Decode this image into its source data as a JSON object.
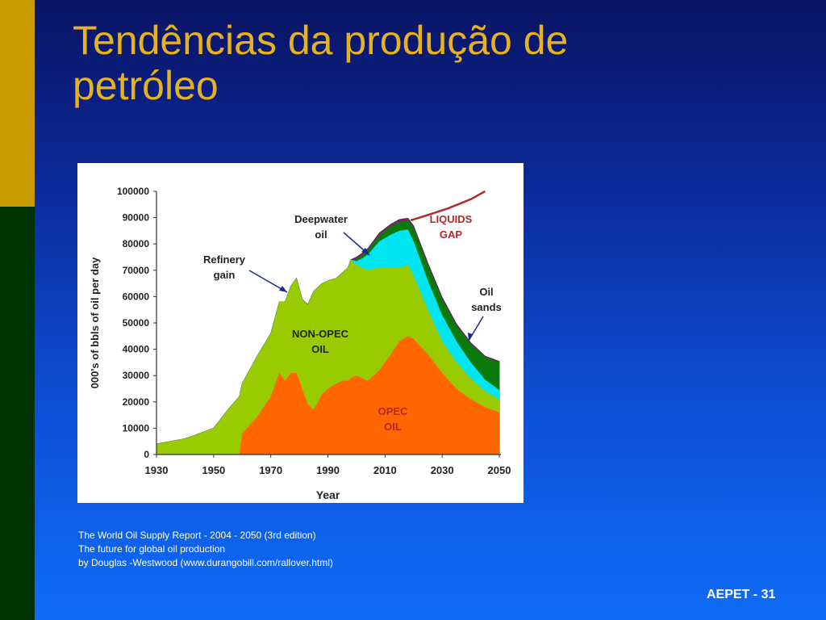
{
  "slide": {
    "title": "Tendências da produção de\npetróleo",
    "caption_lines": [
      "The World Oil Supply Report - 2004 - 2050 (3rd edition)",
      "The future for global oil production",
      "by Douglas -Westwood  (www.durangobill.com/rallover.html)"
    ],
    "footer": "AEPET - 31",
    "colors": {
      "title": "#e6b21e",
      "gold_bar": "#c99a00",
      "green_bar": "#003300"
    }
  },
  "chart_data": {
    "type": "area",
    "xlabel": "Year",
    "ylabel": "000's of bbls of oil per day",
    "xlim": [
      1930,
      2050
    ],
    "ylim": [
      0,
      100000
    ],
    "x_ticks": [
      "1930",
      "1950",
      "1970",
      "1990",
      "2010",
      "2030",
      "2050"
    ],
    "y_ticks": [
      "0",
      "10000",
      "20000",
      "30000",
      "40000",
      "50000",
      "60000",
      "70000",
      "80000",
      "90000",
      "100000"
    ],
    "years": [
      1930,
      1940,
      1950,
      1955,
      1959,
      1960,
      1965,
      1970,
      1973,
      1975,
      1977,
      1979,
      1981,
      1983,
      1985,
      1988,
      1990,
      1993,
      1995,
      1997,
      1998,
      2000,
      2002,
      2004,
      2008,
      2012,
      2015,
      2018,
      2020,
      2025,
      2030,
      2035,
      2040,
      2045,
      2050
    ],
    "series": [
      {
        "label": "OPEC OIL",
        "color": "#ff6600",
        "values": [
          0,
          0,
          0,
          0,
          0,
          8000,
          14000,
          22000,
          31000,
          28000,
          31000,
          31000,
          25000,
          19000,
          17000,
          23000,
          25000,
          27000,
          28000,
          28000,
          29000,
          30000,
          29000,
          28000,
          32000,
          38000,
          43000,
          45000,
          44000,
          38000,
          31000,
          25000,
          21000,
          18000,
          16000
        ]
      },
      {
        "label": "NON-OPEC OIL",
        "color": "#99cc00",
        "values": [
          4000,
          6000,
          10000,
          17000,
          22000,
          27000,
          37000,
          46000,
          58000,
          58000,
          64000,
          67000,
          59000,
          57000,
          62000,
          65000,
          66000,
          67000,
          69000,
          71000,
          74000,
          72000,
          71000,
          70000,
          71000,
          71000,
          71000,
          72000,
          68000,
          55000,
          43000,
          35000,
          29000,
          24000,
          21000
        ]
      },
      {
        "label": "Deepwater oil",
        "color": "#00e5f0",
        "values": [
          4000,
          6000,
          10000,
          17000,
          22000,
          27000,
          37000,
          46000,
          58000,
          58000,
          64000,
          67000,
          59000,
          57000,
          62000,
          65000,
          66000,
          67000,
          69000,
          71000,
          74000,
          73500,
          74500,
          76000,
          81000,
          83500,
          85000,
          85500,
          81000,
          66000,
          53000,
          43000,
          35000,
          28500,
          24500
        ]
      },
      {
        "label": "Oil sands",
        "color": "#0b7a0b",
        "values": [
          4000,
          6000,
          10000,
          17000,
          22000,
          27000,
          37000,
          46000,
          58000,
          58000,
          64000,
          67000,
          59000,
          57000,
          62000,
          65000,
          66000,
          67000,
          69000,
          71000,
          74000,
          74300,
          75800,
          77600,
          83400,
          86700,
          88400,
          89000,
          86000,
          72000,
          59000,
          49000,
          42000,
          37000,
          35000
        ]
      },
      {
        "label": "Refinery gain",
        "color": "#8a1a7a",
        "values": [
          4000,
          6000,
          10000,
          17000,
          22000,
          27000,
          37000,
          46000,
          58000,
          58000,
          64000,
          67000,
          59000,
          57000,
          62000,
          65000,
          66000,
          67000,
          69000,
          71000,
          74000,
          75000,
          76500,
          78300,
          84200,
          87500,
          89300,
          89800,
          86800,
          72700,
          59700,
          49600,
          42500,
          37400,
          35400
        ]
      },
      {
        "label": "LIQUIDS GAP",
        "color": "#b02a2a",
        "x": [
          2019,
          2025,
          2032,
          2040,
          2045
        ],
        "values": [
          89000,
          91000,
          93500,
          97000,
          100000
        ]
      }
    ],
    "annotations": [
      {
        "text": [
          "Deepwater",
          "oil"
        ],
        "color": "#222222"
      },
      {
        "text": [
          "Refinery",
          "gain"
        ],
        "color": "#222222"
      },
      {
        "text": [
          "LIQUIDS",
          "GAP"
        ],
        "color": "#b02a2a"
      },
      {
        "text": [
          "Oil",
          "sands"
        ],
        "color": "#222222"
      },
      {
        "text": [
          "NON-OPEC",
          "OIL"
        ],
        "color": "#222222"
      },
      {
        "text": [
          "OPEC",
          "OIL"
        ],
        "color": "#b02a2a"
      }
    ]
  }
}
